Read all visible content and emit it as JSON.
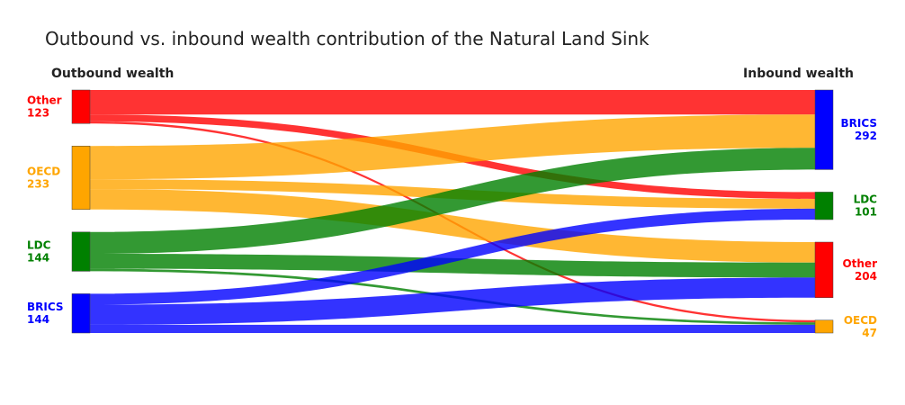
{
  "chart_data": {
    "type": "sankey",
    "title": "Outbound vs. inbound wealth contribution of the Natural Land Sink",
    "left_header": "Outbound wealth",
    "right_header": "Inbound wealth",
    "colors": {
      "Other": "#ff0000",
      "OECD": "#ffa500",
      "LDC": "#008000",
      "BRICS": "#0000ff"
    },
    "left_nodes": [
      {
        "name": "Other",
        "value": "123"
      },
      {
        "name": "OECD",
        "value": "233"
      },
      {
        "name": "LDC",
        "value": "144"
      },
      {
        "name": "BRICS",
        "value": "144"
      }
    ],
    "right_nodes": [
      {
        "name": "BRICS",
        "value": "292"
      },
      {
        "name": "LDC",
        "value": "101"
      },
      {
        "name": "Other",
        "value": "204"
      },
      {
        "name": "OECD",
        "value": "47"
      }
    ],
    "links": [
      {
        "source": "Other",
        "target": "BRICS",
        "value": 90
      },
      {
        "source": "Other",
        "target": "LDC",
        "value": 25
      },
      {
        "source": "Other",
        "target": "OECD",
        "value": 8
      },
      {
        "source": "OECD",
        "target": "BRICS",
        "value": 122
      },
      {
        "source": "OECD",
        "target": "LDC",
        "value": 36
      },
      {
        "source": "OECD",
        "target": "Other",
        "value": 75
      },
      {
        "source": "LDC",
        "target": "BRICS",
        "value": 80
      },
      {
        "source": "LDC",
        "target": "Other",
        "value": 55
      },
      {
        "source": "LDC",
        "target": "OECD",
        "value": 9
      },
      {
        "source": "BRICS",
        "target": "LDC",
        "value": 40
      },
      {
        "source": "BRICS",
        "target": "Other",
        "value": 74
      },
      {
        "source": "BRICS",
        "target": "OECD",
        "value": 30
      }
    ]
  }
}
